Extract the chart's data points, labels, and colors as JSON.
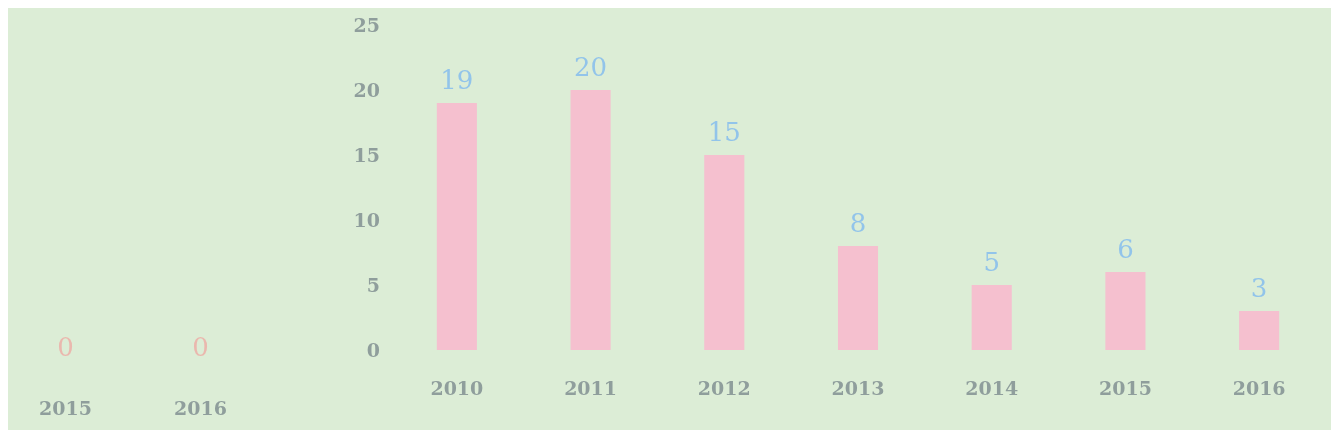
{
  "chart_data": [
    {
      "type": "other",
      "categories": [
        "2015",
        "2016"
      ],
      "values": [
        0,
        0
      ],
      "data_labels": true
    },
    {
      "type": "bar",
      "categories": [
        "2010",
        "2011",
        "2012",
        "2013",
        "2014",
        "2015",
        "2016"
      ],
      "values": [
        19,
        20,
        15,
        8,
        5,
        6,
        3
      ],
      "color": "#f5c0cf",
      "data_labels": true,
      "ylim": [
        0,
        25
      ],
      "yticks": [
        0,
        5,
        10,
        15,
        20,
        25
      ],
      "grid": false
    }
  ]
}
